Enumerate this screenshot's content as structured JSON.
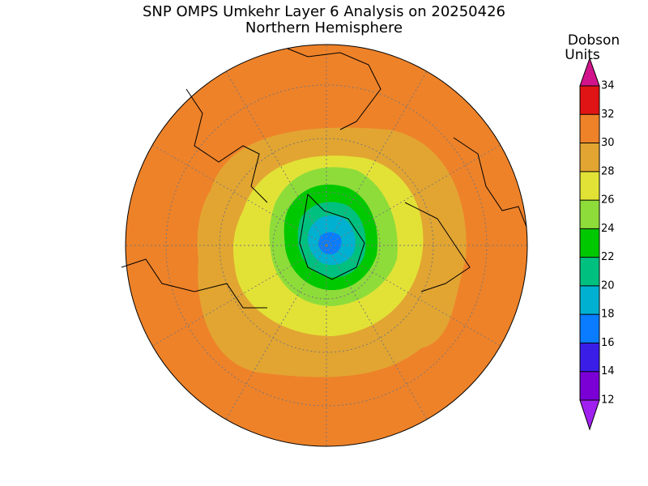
{
  "title": "SNP OMPS Umkehr Layer 6 Analysis on 20250426",
  "subtitle": "Northern Hemisphere",
  "colorbar": {
    "label_lines": [
      "Dobson",
      "Units"
    ],
    "ticks": [
      12,
      14,
      16,
      18,
      20,
      22,
      24,
      26,
      28,
      30,
      32,
      34
    ],
    "colors": [
      "#7a00d6",
      "#3a1ee8",
      "#0a7cff",
      "#00b0d0",
      "#00c080",
      "#00c800",
      "#8edc3a",
      "#e2e236",
      "#e2a532",
      "#ee8229",
      "#e01414"
    ],
    "under_color": "#a020f0",
    "over_color": "#d2148c"
  }
}
